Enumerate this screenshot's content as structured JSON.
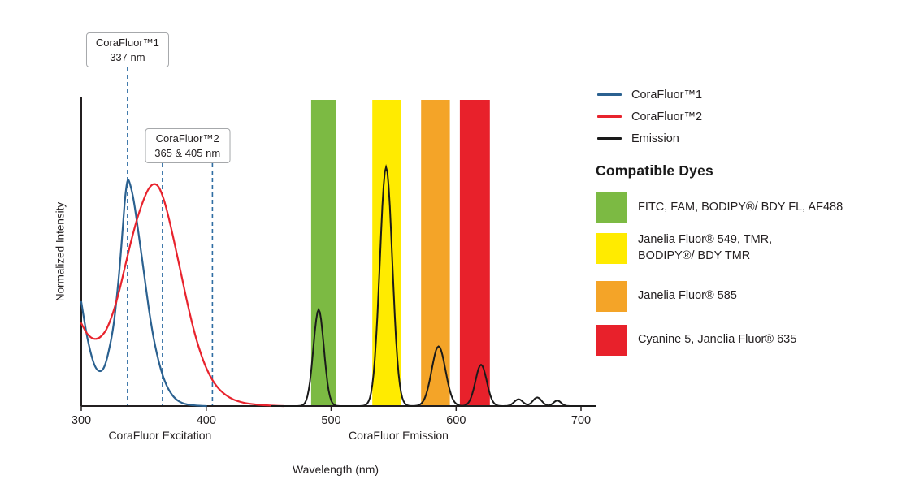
{
  "chart": {
    "type": "line",
    "xlabel": "Wavelength (nm)",
    "ylabel": "Normalized Intensity",
    "x_range_nm": [
      300,
      700
    ],
    "y_range": [
      0,
      1
    ],
    "x_ticks": [
      300,
      400,
      500,
      600,
      700
    ],
    "grid": false,
    "axis_captions": [
      {
        "label": "CoraFluor Excitation",
        "center_nm": 363
      },
      {
        "label": "CoraFluor Emission",
        "center_nm": 554
      }
    ],
    "annotations": [
      {
        "lines": [
          "CoraFluor™1",
          "337 nm"
        ],
        "anchor_nm": 337,
        "dash_lines_nm": [
          337
        ]
      },
      {
        "lines": [
          "CoraFluor™2",
          "365 & 405 nm"
        ],
        "anchor_nm": 385,
        "dash_lines_nm": [
          365,
          405
        ]
      }
    ],
    "dash_color": "#2F6DA3",
    "axis_color": "#231F20",
    "excitation_series": [
      {
        "name": "CoraFluor™1",
        "color": "#2B6190",
        "points": [
          [
            300,
            0.34
          ],
          [
            305,
            0.22
          ],
          [
            310,
            0.14
          ],
          [
            314,
            0.115
          ],
          [
            318,
            0.125
          ],
          [
            322,
            0.18
          ],
          [
            326,
            0.27
          ],
          [
            330,
            0.42
          ],
          [
            333,
            0.57
          ],
          [
            335,
            0.675
          ],
          [
            337,
            0.735
          ],
          [
            339,
            0.725
          ],
          [
            342,
            0.67
          ],
          [
            346,
            0.56
          ],
          [
            350,
            0.44
          ],
          [
            354,
            0.32
          ],
          [
            358,
            0.22
          ],
          [
            363,
            0.13
          ],
          [
            368,
            0.07
          ],
          [
            373,
            0.035
          ],
          [
            378,
            0.016
          ],
          [
            384,
            0.006
          ],
          [
            391,
            0.002
          ],
          [
            400,
            0
          ]
        ]
      },
      {
        "name": "CoraFluor™2",
        "color": "#E8232D",
        "points": [
          [
            300,
            0.27
          ],
          [
            305,
            0.235
          ],
          [
            310,
            0.22
          ],
          [
            315,
            0.225
          ],
          [
            320,
            0.25
          ],
          [
            325,
            0.3
          ],
          [
            330,
            0.37
          ],
          [
            335,
            0.455
          ],
          [
            340,
            0.54
          ],
          [
            345,
            0.615
          ],
          [
            350,
            0.675
          ],
          [
            354,
            0.71
          ],
          [
            358,
            0.725
          ],
          [
            362,
            0.715
          ],
          [
            366,
            0.675
          ],
          [
            370,
            0.615
          ],
          [
            375,
            0.525
          ],
          [
            380,
            0.43
          ],
          [
            385,
            0.335
          ],
          [
            390,
            0.25
          ],
          [
            395,
            0.18
          ],
          [
            400,
            0.125
          ],
          [
            405,
            0.085
          ],
          [
            410,
            0.057
          ],
          [
            416,
            0.035
          ],
          [
            422,
            0.021
          ],
          [
            430,
            0.011
          ],
          [
            440,
            0.005
          ],
          [
            450,
            0.002
          ],
          [
            462,
            0
          ]
        ]
      }
    ],
    "emission_series": {
      "name": "Emission",
      "color": "#1A1A1A",
      "peaks": [
        {
          "center_nm": 490,
          "height": 0.315,
          "sigma_nm": 4.2
        },
        {
          "center_nm": 544,
          "height": 0.78,
          "sigma_nm": 5.0
        },
        {
          "center_nm": 586,
          "height": 0.195,
          "sigma_nm": 5.5
        },
        {
          "center_nm": 620,
          "height": 0.135,
          "sigma_nm": 4.5
        },
        {
          "center_nm": 650,
          "height": 0.022,
          "sigma_nm": 3.5
        },
        {
          "center_nm": 665,
          "height": 0.028,
          "sigma_nm": 3.5
        },
        {
          "center_nm": 681,
          "height": 0.018,
          "sigma_nm": 3.0
        }
      ]
    },
    "detection_bands": [
      {
        "nm": [
          484,
          504
        ],
        "color": "#7CBA43"
      },
      {
        "nm": [
          533,
          556
        ],
        "color": "#FFEB00"
      },
      {
        "nm": [
          572,
          595
        ],
        "color": "#F4A428"
      },
      {
        "nm": [
          603,
          627
        ],
        "color": "#E8212B"
      }
    ]
  },
  "legend": {
    "items": [
      {
        "label": "CoraFluor™1",
        "color": "#2B6190"
      },
      {
        "label": "CoraFluor™2",
        "color": "#E8232D"
      },
      {
        "label": "Emission",
        "color": "#1A1A1A"
      }
    ]
  },
  "dyes": {
    "heading": "Compatible Dyes",
    "items": [
      {
        "label": "FITC, FAM, BODIPY®/ BDY FL, AF488",
        "color": "#7CBA43"
      },
      {
        "label": "Janelia Fluor® 549, TMR,\nBODIPY®/ BDY TMR",
        "color": "#FFEB00"
      },
      {
        "label": "Janelia Fluor® 585",
        "color": "#F4A428"
      },
      {
        "label": "Cyanine 5, Janelia Fluor® 635",
        "color": "#E8212B"
      }
    ]
  }
}
